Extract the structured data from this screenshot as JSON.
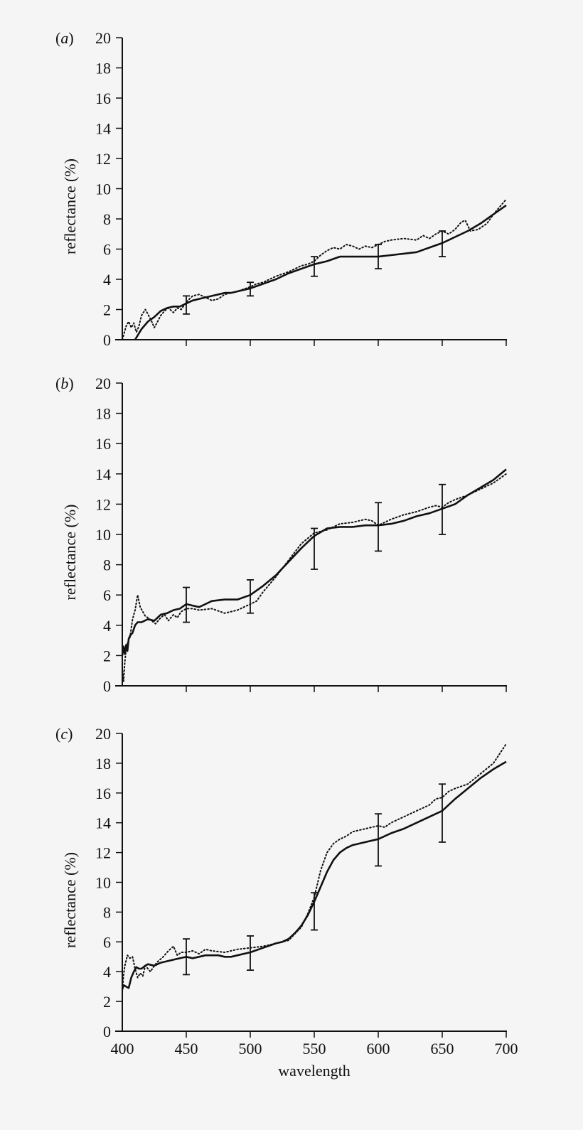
{
  "chart_data": [
    {
      "type": "line",
      "panel_label": "(a)",
      "panel_letter": "a",
      "xlabel": "",
      "ylabel": "reflectance (%)",
      "xlim": [
        400,
        700
      ],
      "ylim": [
        0,
        20
      ],
      "yticks": [
        0,
        2,
        4,
        6,
        8,
        10,
        12,
        14,
        16,
        18,
        20
      ],
      "xticks": [
        400,
        450,
        500,
        550,
        600,
        650,
        700
      ],
      "show_xtick_labels": false,
      "grid": false,
      "series": [
        {
          "name": "solid",
          "style": "solid",
          "x": [
            410,
            415,
            420,
            425,
            430,
            435,
            440,
            445,
            450,
            455,
            460,
            465,
            470,
            475,
            480,
            485,
            490,
            495,
            500,
            510,
            520,
            530,
            540,
            550,
            560,
            570,
            580,
            590,
            600,
            610,
            620,
            630,
            640,
            650,
            660,
            670,
            680,
            690,
            700
          ],
          "y": [
            0,
            0.7,
            1.2,
            1.5,
            1.9,
            2.1,
            2.2,
            2.2,
            2.4,
            2.6,
            2.7,
            2.8,
            2.9,
            3.0,
            3.1,
            3.1,
            3.2,
            3.3,
            3.4,
            3.7,
            4.0,
            4.4,
            4.7,
            5.0,
            5.2,
            5.5,
            5.5,
            5.5,
            5.5,
            5.6,
            5.7,
            5.8,
            6.1,
            6.4,
            6.8,
            7.2,
            7.7,
            8.3,
            8.9
          ]
        },
        {
          "name": "dotted",
          "style": "dotted",
          "x": [
            400,
            403,
            405,
            407,
            409,
            411,
            413,
            415,
            418,
            420,
            423,
            425,
            427,
            430,
            433,
            436,
            440,
            443,
            446,
            450,
            455,
            460,
            465,
            470,
            475,
            480,
            485,
            490,
            500,
            505,
            510,
            520,
            530,
            540,
            545,
            550,
            555,
            560,
            565,
            570,
            575,
            580,
            585,
            590,
            595,
            600,
            605,
            610,
            620,
            630,
            635,
            640,
            645,
            650,
            655,
            660,
            665,
            668,
            672,
            678,
            685,
            690,
            695,
            700
          ],
          "y": [
            0,
            0.9,
            1.2,
            0.8,
            1.1,
            0.5,
            0.9,
            1.6,
            2.0,
            1.7,
            1.2,
            0.8,
            1.1,
            1.6,
            1.9,
            2.1,
            1.8,
            2.1,
            2.0,
            2.5,
            2.9,
            3.0,
            2.8,
            2.6,
            2.7,
            3.0,
            3.1,
            3.2,
            3.5,
            3.7,
            3.8,
            4.2,
            4.5,
            4.9,
            5.0,
            5.2,
            5.6,
            5.9,
            6.1,
            6.0,
            6.3,
            6.2,
            6.0,
            6.2,
            6.1,
            6.3,
            6.5,
            6.6,
            6.7,
            6.6,
            6.9,
            6.7,
            7.0,
            7.2,
            7.0,
            7.3,
            7.8,
            7.9,
            7.2,
            7.3,
            7.7,
            8.3,
            8.8,
            9.3
          ]
        }
      ],
      "error_bars": [
        {
          "x": 450,
          "y": 2.3,
          "low": 1.7,
          "high": 2.9
        },
        {
          "x": 500,
          "y": 3.3,
          "low": 2.9,
          "high": 3.8
        },
        {
          "x": 550,
          "y": 5.0,
          "low": 4.2,
          "high": 5.5
        },
        {
          "x": 600,
          "y": 5.5,
          "low": 4.7,
          "high": 6.3
        },
        {
          "x": 650,
          "y": 6.4,
          "low": 5.5,
          "high": 7.2
        }
      ]
    },
    {
      "type": "line",
      "panel_label": "(b)",
      "panel_letter": "b",
      "xlabel": "",
      "ylabel": "reflectance (%)",
      "xlim": [
        400,
        700
      ],
      "ylim": [
        0,
        20
      ],
      "yticks": [
        0,
        2,
        4,
        6,
        8,
        10,
        12,
        14,
        16,
        18,
        20
      ],
      "xticks": [
        400,
        450,
        500,
        550,
        600,
        650,
        700
      ],
      "show_xtick_labels": false,
      "grid": false,
      "series": [
        {
          "name": "solid",
          "style": "solid",
          "x": [
            400,
            401,
            402,
            403,
            404,
            405,
            406,
            408,
            410,
            412,
            415,
            420,
            425,
            430,
            435,
            440,
            445,
            450,
            455,
            460,
            465,
            470,
            480,
            490,
            500,
            505,
            510,
            520,
            530,
            540,
            550,
            560,
            570,
            580,
            590,
            600,
            610,
            620,
            630,
            640,
            650,
            660,
            670,
            680,
            690,
            700
          ],
          "y": [
            2.0,
            2.6,
            2.1,
            2.7,
            2.3,
            3.1,
            3.3,
            3.5,
            4.0,
            4.2,
            4.2,
            4.4,
            4.3,
            4.7,
            4.8,
            5.0,
            5.1,
            5.4,
            5.3,
            5.2,
            5.4,
            5.6,
            5.7,
            5.7,
            6.0,
            6.3,
            6.6,
            7.3,
            8.2,
            9.1,
            9.9,
            10.4,
            10.5,
            10.5,
            10.6,
            10.6,
            10.7,
            10.9,
            11.2,
            11.4,
            11.7,
            12.0,
            12.6,
            13.1,
            13.6,
            14.3
          ]
        },
        {
          "name": "dotted",
          "style": "dotted",
          "x": [
            400,
            401,
            402,
            403,
            404,
            406,
            408,
            410,
            412,
            414,
            416,
            418,
            420,
            423,
            426,
            430,
            433,
            436,
            440,
            443,
            446,
            450,
            455,
            460,
            470,
            480,
            490,
            500,
            505,
            510,
            520,
            530,
            540,
            550,
            560,
            570,
            580,
            590,
            595,
            600,
            605,
            610,
            620,
            630,
            640,
            645,
            650,
            655,
            660,
            670,
            680,
            690,
            700
          ],
          "y": [
            1.2,
            0.3,
            1.6,
            2.4,
            2.8,
            3.2,
            4.4,
            5.0,
            6.0,
            5.2,
            4.9,
            4.6,
            4.5,
            4.3,
            4.1,
            4.5,
            4.7,
            4.3,
            4.7,
            4.5,
            4.9,
            5.1,
            5.1,
            5.0,
            5.1,
            4.8,
            5.0,
            5.4,
            5.6,
            6.2,
            7.2,
            8.3,
            9.4,
            10.1,
            10.3,
            10.7,
            10.8,
            11.0,
            10.9,
            10.6,
            10.8,
            11.0,
            11.3,
            11.5,
            11.8,
            11.9,
            11.8,
            12.1,
            12.3,
            12.6,
            13.0,
            13.4,
            14.0
          ]
        }
      ],
      "error_bars": [
        {
          "x": 450,
          "y": 5.4,
          "low": 4.2,
          "high": 6.5
        },
        {
          "x": 500,
          "y": 6.0,
          "low": 4.8,
          "high": 7.0
        },
        {
          "x": 550,
          "y": 9.1,
          "low": 7.7,
          "high": 10.4
        },
        {
          "x": 600,
          "y": 10.6,
          "low": 8.9,
          "high": 12.1
        },
        {
          "x": 650,
          "y": 11.7,
          "low": 10.0,
          "high": 13.3
        }
      ]
    },
    {
      "type": "line",
      "panel_label": "(c)",
      "panel_letter": "c",
      "xlabel": "wavelength",
      "ylabel": "reflectance (%)",
      "xlim": [
        400,
        700
      ],
      "ylim": [
        0,
        20
      ],
      "yticks": [
        0,
        2,
        4,
        6,
        8,
        10,
        12,
        14,
        16,
        18,
        20
      ],
      "xticks": [
        400,
        450,
        500,
        550,
        600,
        650,
        700
      ],
      "show_xtick_labels": true,
      "grid": false,
      "series": [
        {
          "name": "solid",
          "style": "solid",
          "x": [
            400,
            401,
            403,
            405,
            407,
            409,
            411,
            413,
            415,
            418,
            420,
            425,
            430,
            435,
            440,
            445,
            450,
            455,
            460,
            465,
            470,
            475,
            480,
            485,
            490,
            500,
            510,
            520,
            525,
            530,
            535,
            540,
            545,
            550,
            555,
            560,
            565,
            570,
            575,
            580,
            590,
            600,
            610,
            620,
            630,
            640,
            650,
            660,
            670,
            680,
            690,
            700
          ],
          "y": [
            2.8,
            3.1,
            3.0,
            2.9,
            3.6,
            4.0,
            4.3,
            4.2,
            4.2,
            4.4,
            4.5,
            4.4,
            4.6,
            4.7,
            4.8,
            4.9,
            5.0,
            4.9,
            5.0,
            5.1,
            5.1,
            5.1,
            5.0,
            5.0,
            5.1,
            5.3,
            5.6,
            5.9,
            6.0,
            6.2,
            6.6,
            7.1,
            7.8,
            8.7,
            9.7,
            10.7,
            11.5,
            12.0,
            12.3,
            12.5,
            12.7,
            12.9,
            13.3,
            13.6,
            14.0,
            14.4,
            14.8,
            15.6,
            16.3,
            17.0,
            17.6,
            18.1
          ]
        },
        {
          "name": "dotted",
          "style": "dotted",
          "x": [
            400,
            401,
            402,
            404,
            406,
            408,
            410,
            412,
            414,
            416,
            418,
            420,
            422,
            425,
            428,
            432,
            436,
            440,
            443,
            446,
            450,
            455,
            460,
            465,
            470,
            480,
            490,
            500,
            510,
            520,
            530,
            540,
            545,
            550,
            555,
            560,
            565,
            570,
            575,
            580,
            590,
            600,
            605,
            610,
            620,
            630,
            640,
            645,
            650,
            655,
            660,
            670,
            680,
            690,
            700
          ],
          "y": [
            2.6,
            3.8,
            4.4,
            5.1,
            4.9,
            5.0,
            4.2,
            3.6,
            3.9,
            3.7,
            4.4,
            4.2,
            4.0,
            4.4,
            4.7,
            5.0,
            5.4,
            5.7,
            5.1,
            5.3,
            5.3,
            5.4,
            5.2,
            5.5,
            5.4,
            5.3,
            5.5,
            5.6,
            5.7,
            5.9,
            6.1,
            7.0,
            7.9,
            9.0,
            10.8,
            12.0,
            12.6,
            12.9,
            13.1,
            13.4,
            13.6,
            13.8,
            13.7,
            14.0,
            14.4,
            14.8,
            15.2,
            15.6,
            15.7,
            16.1,
            16.3,
            16.6,
            17.3,
            18.0,
            19.3
          ]
        }
      ],
      "error_bars": [
        {
          "x": 450,
          "y": 5.0,
          "low": 3.8,
          "high": 6.2
        },
        {
          "x": 500,
          "y": 5.3,
          "low": 4.1,
          "high": 6.4
        },
        {
          "x": 550,
          "y": 8.0,
          "low": 6.8,
          "high": 9.3
        },
        {
          "x": 600,
          "y": 12.9,
          "low": 11.1,
          "high": 14.6
        },
        {
          "x": 650,
          "y": 14.7,
          "low": 12.7,
          "high": 16.6
        }
      ]
    }
  ],
  "panels": [
    {
      "label": "(a)",
      "ylabel": "reflectance (%)"
    },
    {
      "label": "(b)",
      "ylabel": "reflectance (%)"
    },
    {
      "label": "(c)",
      "ylabel": "reflectance (%)"
    }
  ],
  "xaxis": {
    "title": "wavelength",
    "tick_labels": [
      "400",
      "450",
      "500",
      "550",
      "600",
      "650",
      "700"
    ]
  },
  "style": {
    "background": "#f5f5f5",
    "ink": "#111111"
  }
}
